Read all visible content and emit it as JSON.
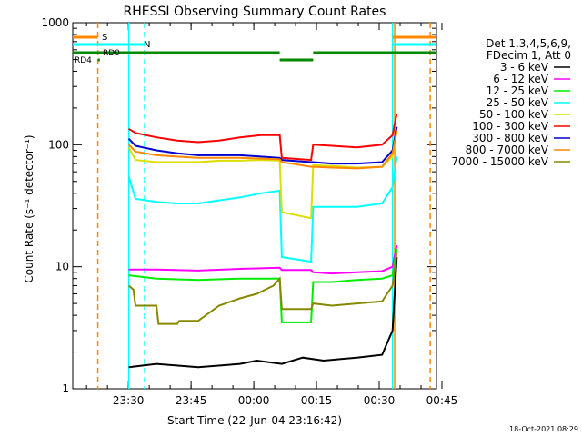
{
  "chart_data": {
    "type": "line",
    "title": "RHESSI Observing Summary Count Rates",
    "xlabel": "Start Time (22-Jun-04 23:16:42)",
    "ylabel": "Count Rate (s⁻¹ detector⁻¹)",
    "yscale": "log",
    "ylim": [
      1,
      1000
    ],
    "xlim_minutes": [
      0,
      87
    ],
    "x_ticks": [
      {
        "minute": 13.3,
        "label": "23:30"
      },
      {
        "minute": 28.3,
        "label": "23:45"
      },
      {
        "minute": 43.3,
        "label": "00:00"
      },
      {
        "minute": 58.3,
        "label": "00:15"
      },
      {
        "minute": 73.3,
        "label": "00:30"
      },
      {
        "minute": 88.3,
        "label": "00:45"
      }
    ],
    "y_ticks": [
      {
        "value": 1,
        "label": "1"
      },
      {
        "value": 10,
        "label": "10"
      },
      {
        "value": 100,
        "label": "100"
      },
      {
        "value": 1000,
        "label": "1000"
      }
    ],
    "legend_header": [
      "Det 1,3,4,5,6,9,",
      "FDecim 1, Att 0"
    ],
    "legend_position": "right",
    "series": [
      {
        "name": "3 - 6 keV",
        "color": "#000000",
        "x": [
          13.4,
          20,
          30,
          40,
          44,
          50,
          55,
          60,
          68,
          74,
          76.5,
          77.5
        ],
        "y": [
          1.5,
          1.6,
          1.5,
          1.6,
          1.7,
          1.6,
          1.8,
          1.7,
          1.8,
          1.9,
          3.0,
          12
        ]
      },
      {
        "name": "6 - 12 keV",
        "color": "#ff00ff",
        "x": [
          13.4,
          20,
          30,
          40,
          49.5,
          50,
          57,
          57.5,
          62,
          68,
          74,
          76.5,
          77.5
        ],
        "y": [
          9.5,
          9.5,
          9.3,
          9.6,
          9.8,
          9.4,
          9.4,
          9.0,
          8.8,
          9.0,
          9.2,
          10,
          15
        ]
      },
      {
        "name": "12 - 25 keV",
        "color": "#00ee00",
        "x": [
          13.4,
          20,
          30,
          40,
          49.5,
          50,
          57,
          57.5,
          62,
          68,
          74,
          76.5,
          77.5
        ],
        "y": [
          8.5,
          8.0,
          7.8,
          8.0,
          8.0,
          3.5,
          3.5,
          7.5,
          7.5,
          7.8,
          8.0,
          8.5,
          14
        ]
      },
      {
        "name": "25 - 50 keV",
        "color": "#00ffff",
        "x": [
          13.4,
          15,
          20,
          25,
          30,
          35,
          40,
          45,
          49.5,
          50,
          57,
          57.5,
          62,
          68,
          74,
          76.5,
          77.5
        ],
        "y": [
          55,
          36,
          34,
          33,
          33,
          35,
          37,
          40,
          42,
          12,
          11,
          31,
          31,
          31,
          33,
          45,
          80
        ]
      },
      {
        "name": "50 - 100 keV",
        "color": "#dddd00",
        "x": [
          13.4,
          15,
          20,
          25,
          30,
          35,
          40,
          45,
          49.5,
          50,
          57,
          57.5,
          62,
          68,
          74,
          76.5,
          77.5
        ],
        "y": [
          95,
          75,
          72,
          72,
          72,
          74,
          74,
          75,
          74,
          28,
          25,
          68,
          67,
          65,
          66,
          80,
          130
        ]
      },
      {
        "name": "100 - 300 keV",
        "color": "#ff0000",
        "x": [
          13.4,
          15,
          20,
          25,
          30,
          35,
          40,
          45,
          49.5,
          50,
          57,
          57.5,
          62,
          68,
          74,
          76.5,
          77.5
        ],
        "y": [
          135,
          125,
          115,
          108,
          105,
          108,
          115,
          120,
          120,
          78,
          75,
          100,
          98,
          95,
          100,
          120,
          180
        ]
      },
      {
        "name": "300 - 800 keV",
        "color": "#0000cc",
        "x": [
          13.4,
          15,
          20,
          25,
          30,
          35,
          40,
          45,
          49.5,
          50,
          57,
          57.5,
          62,
          68,
          74,
          76.5,
          77.5
        ],
        "y": [
          112,
          98,
          90,
          85,
          82,
          82,
          82,
          80,
          78,
          75,
          72,
          72,
          70,
          70,
          72,
          90,
          140
        ]
      },
      {
        "name": "800 - 7000 keV",
        "color": "#ff8800",
        "x": [
          13.4,
          15,
          20,
          25,
          30,
          35,
          40,
          45,
          49.5,
          50,
          57,
          57.5,
          62,
          68,
          74,
          76.5,
          77.5
        ],
        "y": [
          100,
          88,
          82,
          80,
          78,
          78,
          78,
          77,
          76,
          72,
          66,
          66,
          65,
          64,
          66,
          85,
          130
        ]
      },
      {
        "name": "7000 - 15000 keV",
        "color": "#888800",
        "x": [
          13.4,
          14.5,
          15,
          20,
          20.5,
          25,
          25.5,
          30,
          35,
          40,
          44,
          48,
          49.5,
          50,
          57,
          57.5,
          62,
          68,
          74,
          76.5,
          77.5
        ],
        "y": [
          7.0,
          6.5,
          4.8,
          4.8,
          3.4,
          3.4,
          3.6,
          3.6,
          4.8,
          5.5,
          6.0,
          7.0,
          8.0,
          4.5,
          4.5,
          5.0,
          4.8,
          5.0,
          5.2,
          7,
          13
        ]
      }
    ],
    "state_bars": [
      {
        "label": "S",
        "color": "#ff8800",
        "segments": [
          [
            0,
            6
          ],
          [
            76.5,
            87
          ]
        ]
      },
      {
        "label": "N",
        "color": "#00ffff",
        "segments": [
          [
            0,
            17.2
          ],
          [
            76.5,
            87
          ]
        ]
      },
      {
        "label": "RD0",
        "color": "#008800",
        "segments": [
          [
            0,
            49.5
          ],
          [
            57.5,
            87
          ]
        ]
      },
      {
        "label": "",
        "color": "#008800",
        "segments": [
          [
            49.5,
            57.5
          ]
        ]
      },
      {
        "label": "RD4",
        "color": "#008800",
        "segments": [
          [
            6,
            6.5
          ]
        ]
      }
    ],
    "vertical_markers": [
      {
        "minute": 6.0,
        "color": "#ff8800",
        "style": "dashed"
      },
      {
        "minute": 17.2,
        "color": "#00ffff",
        "style": "dashed"
      },
      {
        "minute": 13.4,
        "color": "#00ffff",
        "style": "solid"
      },
      {
        "minute": 76.5,
        "color": "#00ffff",
        "style": "solid"
      },
      {
        "minute": 77.0,
        "color": "#ff8800",
        "style": "solid"
      },
      {
        "minute": 85.5,
        "color": "#ff8800",
        "style": "dashed"
      }
    ],
    "footer_date": "18-Oct-2021 08:29"
  }
}
